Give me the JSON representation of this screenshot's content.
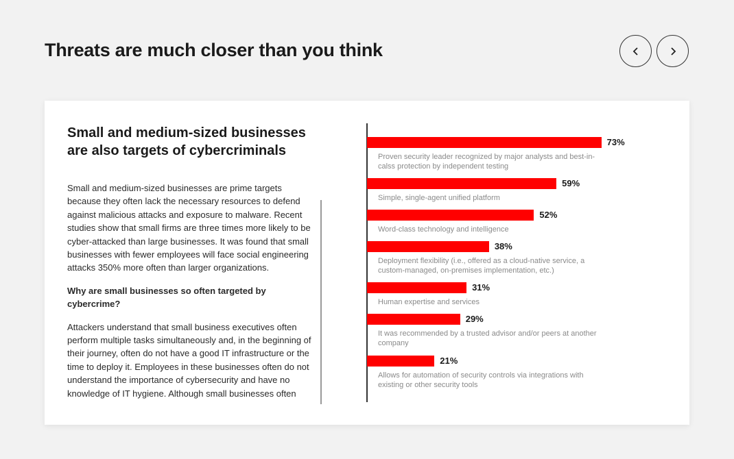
{
  "header": {
    "title": "Threats are much closer than you think",
    "prev_icon": "chevron-left-icon",
    "next_icon": "chevron-right-icon"
  },
  "article": {
    "heading": "Small and medium-sized businesses are also targets of cybercriminals",
    "paragraphs": [
      "Small and medium-sized businesses are prime targets because they often lack the necessary resources to defend against malicious attacks and exposure to malware. Recent studies show that small firms are three times more likely to be cyber-attacked than large businesses. It was found that small businesses with fewer employees will face social engineering attacks 350% more often than larger organizations.",
      "Why are small businesses so often targeted by cybercrime?",
      "Attackers understand that small business executives often perform multiple tasks simultaneously and, in the beginning of their journey, often do not have a good IT infrastructure or the time to deploy it. Employees in these businesses often do not understand the importance of cybersecurity and have no knowledge of IT hygiene. Although small businesses often consider themselves unimportant, they can provide services"
    ]
  },
  "chart_data": {
    "type": "bar",
    "orientation": "horizontal",
    "color": "#ff0000",
    "categories": [
      "Proven security leader recognized by major analysts and best-in-calss protection by independent testing",
      "Simple, single-agent unified platform",
      "Word-class technology and intelligence",
      "Deployment flexibility (i.e., offered as a cloud-native service, a custom-managed, on-premises implementation, etc.)",
      "Human expertise and services",
      "It was recommended by a trusted advisor and/or peers at another company",
      "Allows for automation of security controls via integrations with existing or other security tools"
    ],
    "values": [
      73,
      59,
      52,
      38,
      31,
      29,
      21
    ],
    "labels": [
      "73%",
      "59%",
      "52%",
      "38%",
      "31%",
      "29%",
      "21%"
    ]
  }
}
